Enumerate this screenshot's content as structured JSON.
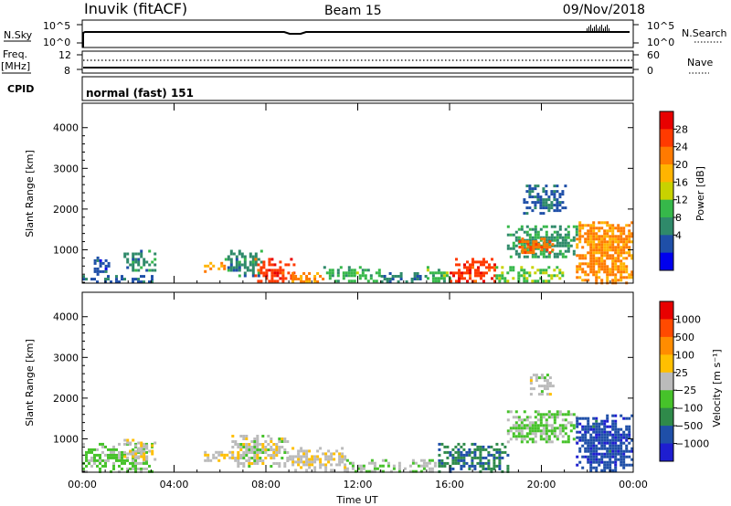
{
  "header": {
    "station": "Inuvik (fitACF)",
    "beam": "Beam 15",
    "date": "09/Nov/2018"
  },
  "summary_panels": {
    "nsky_label": "N.Sky",
    "nsky_ticks": [
      "10^5",
      "10^0"
    ],
    "nsearch_label": "N.Search",
    "nsearch_ticks": [
      "10^5",
      "10^0"
    ],
    "freq_label": "Freq.",
    "freq_unit": "[MHz]",
    "freq_ticks": [
      "12",
      "8"
    ],
    "nave_label": "Nave",
    "nave_ticks": [
      "60",
      "0"
    ],
    "cpid_label": "CPID",
    "cpid_value": "normal (fast) 151"
  },
  "colorbars": {
    "power": {
      "label": "Power [dB]",
      "ticks": [
        "28",
        "24",
        "20",
        "16",
        "12",
        "8",
        "4"
      ],
      "colors": [
        "#0000ee",
        "#1f4fa8",
        "#2f8a6a",
        "#36b84a",
        "#c8d200",
        "#ffb400",
        "#ff7a00",
        "#ff3a00",
        "#e80000"
      ]
    },
    "velocity": {
      "label": "Velocity [m s⁻¹]",
      "ticks": [
        "1000",
        "500",
        "100",
        "25",
        "−25",
        "−100",
        "−500",
        "−1000"
      ],
      "colors": [
        "#1e1ed0",
        "#1f4fa8",
        "#2f8a4a",
        "#46c22a",
        "#bbbbbb",
        "#ffbf00",
        "#ff8c00",
        "#ff4a00",
        "#e80000"
      ]
    }
  },
  "axes": {
    "y_label": "Slant Range [km]",
    "x_label": "Time UT",
    "y_ticks": [
      "4000",
      "3000",
      "2000",
      "1000"
    ],
    "x_ticks": [
      "00:00",
      "04:00",
      "08:00",
      "12:00",
      "16:00",
      "20:00",
      "00:00"
    ]
  },
  "chart_data": [
    {
      "type": "heatmap",
      "title": "",
      "xlabel": "Time UT",
      "ylabel": "Slant Range [km]",
      "colorbar_label": "Power [dB]",
      "xlim": [
        0,
        24
      ],
      "ylim": [
        180,
        4600
      ],
      "clim": [
        0,
        32
      ],
      "regions": [
        {
          "t": [
            0.0,
            3.0
          ],
          "r": [
            200,
            380
          ],
          "value": 6
        },
        {
          "t": [
            0.5,
            1.2
          ],
          "r": [
            400,
            900
          ],
          "value": 5
        },
        {
          "t": [
            1.8,
            3.2
          ],
          "r": [
            500,
            1000
          ],
          "value": 9
        },
        {
          "t": [
            5.3,
            6.2
          ],
          "r": [
            450,
            700
          ],
          "value": 22
        },
        {
          "t": [
            6.2,
            7.8
          ],
          "r": [
            350,
            1000
          ],
          "value": 9
        },
        {
          "t": [
            7.5,
            9.2
          ],
          "r": [
            200,
            800
          ],
          "value": 27
        },
        {
          "t": [
            9.0,
            10.5
          ],
          "r": [
            200,
            450
          ],
          "value": 22
        },
        {
          "t": [
            10.5,
            13.0
          ],
          "r": [
            200,
            600
          ],
          "value": 12
        },
        {
          "t": [
            13.0,
            15.0
          ],
          "r": [
            200,
            450
          ],
          "value": 8
        },
        {
          "t": [
            15.0,
            16.0
          ],
          "r": [
            200,
            600
          ],
          "value": 12
        },
        {
          "t": [
            16.0,
            18.0
          ],
          "r": [
            200,
            800
          ],
          "value": 27
        },
        {
          "t": [
            18.0,
            21.0
          ],
          "r": [
            200,
            600
          ],
          "value": 14
        },
        {
          "t": [
            18.5,
            21.5
          ],
          "r": [
            800,
            1600
          ],
          "value": 10
        },
        {
          "t": [
            19.0,
            20.5
          ],
          "r": [
            900,
            1300
          ],
          "value": 24
        },
        {
          "t": [
            19.2,
            21.0
          ],
          "r": [
            1900,
            2600
          ],
          "value": 6
        },
        {
          "t": [
            21.5,
            24.0
          ],
          "r": [
            200,
            1700
          ],
          "value": 22
        }
      ]
    },
    {
      "type": "heatmap",
      "title": "",
      "xlabel": "Time UT",
      "ylabel": "Slant Range [km]",
      "colorbar_label": "Velocity [m s⁻¹]",
      "xlim": [
        0,
        24
      ],
      "ylim": [
        180,
        4600
      ],
      "clim": [
        -1000,
        1000
      ],
      "regions": [
        {
          "t": [
            0.0,
            3.0
          ],
          "r": [
            200,
            900
          ],
          "value": -150
        },
        {
          "t": [
            1.8,
            3.2
          ],
          "r": [
            500,
            1000
          ],
          "value": 60
        },
        {
          "t": [
            5.3,
            6.8
          ],
          "r": [
            450,
            700
          ],
          "value": 80
        },
        {
          "t": [
            6.5,
            9.0
          ],
          "r": [
            350,
            1100
          ],
          "value": 0
        },
        {
          "t": [
            9.0,
            11.5
          ],
          "r": [
            200,
            800
          ],
          "value": 40
        },
        {
          "t": [
            11.5,
            15.5
          ],
          "r": [
            200,
            500
          ],
          "value": -80
        },
        {
          "t": [
            15.5,
            18.5
          ],
          "r": [
            200,
            900
          ],
          "value": -500
        },
        {
          "t": [
            18.5,
            21.5
          ],
          "r": [
            900,
            1700
          ],
          "value": -150
        },
        {
          "t": [
            19.5,
            20.5
          ],
          "r": [
            2100,
            2600
          ],
          "value": 0
        },
        {
          "t": [
            21.5,
            24.0
          ],
          "r": [
            200,
            1600
          ],
          "value": -700
        }
      ]
    }
  ]
}
